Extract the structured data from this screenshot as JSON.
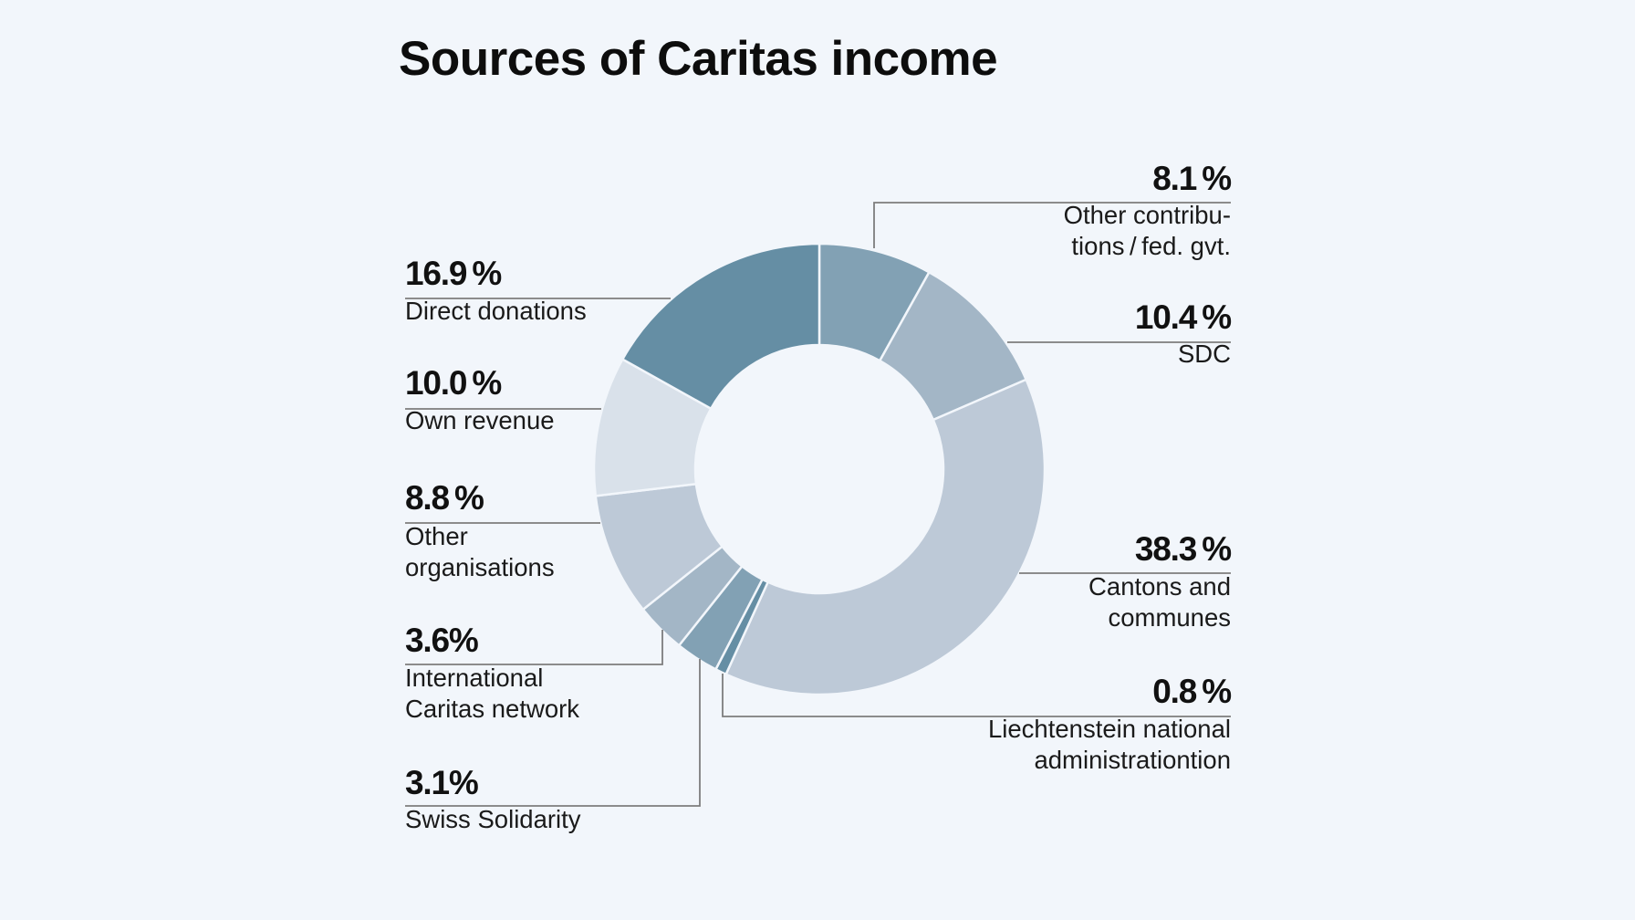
{
  "chart_data": {
    "type": "pie",
    "variant": "donut",
    "title": "Sources of Caritas income",
    "slices": [
      {
        "key": "other-contrib",
        "value": 8.1,
        "value_label": "8.1 %",
        "label_lines": [
          "Other contribu-",
          "tions / fed. gvt."
        ],
        "color": "#82a1b4"
      },
      {
        "key": "sdc",
        "value": 10.4,
        "value_label": "10.4 %",
        "label_lines": [
          "SDC"
        ],
        "color": "#a3b6c6"
      },
      {
        "key": "cantons",
        "value": 38.3,
        "value_label": "38.3 %",
        "label_lines": [
          "Cantons and",
          "communes"
        ],
        "color": "#bdc9d7"
      },
      {
        "key": "liechtenstein",
        "value": 0.8,
        "value_label": "0.8 %",
        "label_lines": [
          "Liechtenstein national",
          "administrationtion"
        ],
        "color": "#658ea4"
      },
      {
        "key": "swiss-solidarity",
        "value": 3.1,
        "value_label": "3.1%",
        "label_lines": [
          "Swiss Solidarity"
        ],
        "color": "#82a1b4"
      },
      {
        "key": "intl-caritas",
        "value": 3.6,
        "value_label": "3.6%",
        "label_lines": [
          "International",
          "Caritas network"
        ],
        "color": "#a3b6c6"
      },
      {
        "key": "other-orgs",
        "value": 8.8,
        "value_label": "8.8 %",
        "label_lines": [
          "Other",
          "organisations"
        ],
        "color": "#bdc9d7"
      },
      {
        "key": "own-revenue",
        "value": 10.0,
        "value_label": "10.0 %",
        "label_lines": [
          "Own revenue"
        ],
        "color": "#d9e1ea"
      },
      {
        "key": "direct-donations",
        "value": 16.9,
        "value_label": "16.9 %",
        "label_lines": [
          "Direct donations"
        ],
        "color": "#658ea4"
      }
    ]
  }
}
